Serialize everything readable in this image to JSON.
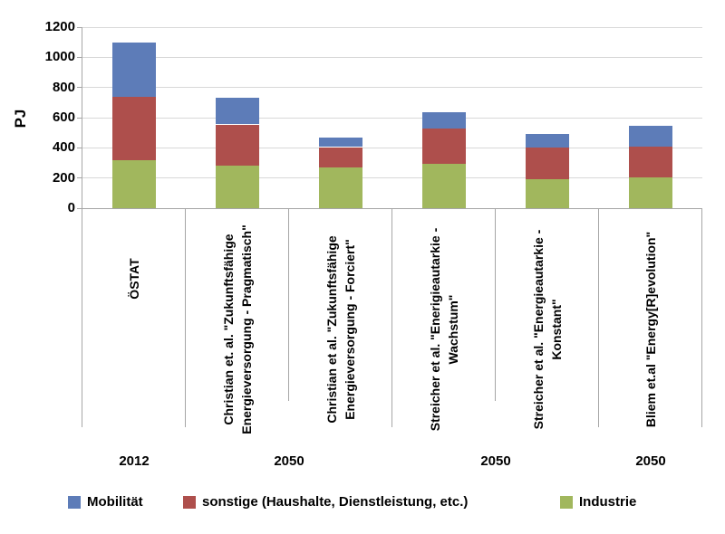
{
  "chart_data": {
    "type": "bar",
    "stacked": true,
    "title": "",
    "ylabel": "PJ",
    "ylim": [
      0,
      1200
    ],
    "ytick_step": 200,
    "yticks": [
      "1200",
      "1000",
      "800",
      "600",
      "400",
      "200",
      "0"
    ],
    "grid": true,
    "legend_position": "bottom",
    "categories": [
      "ÖSTAT",
      "Christian et. al. \"Zukunftsfähige\nEnergieversorgung - Pragmatisch\"",
      "Christian et al. \"Zukunftsfähige\nEnergieversorgung - Forciert\"",
      "Streicher et al. \"Enerigieautarkie -\nWachstum\"",
      "Streicher et al. \"Energieautarkie -\nKonstant\"",
      "Bliem et.al \"Energy[R]evolution\""
    ],
    "groups": [
      {
        "label": "2012",
        "span": 1
      },
      {
        "label": "2050",
        "span": 2
      },
      {
        "label": "2050",
        "span": 2
      },
      {
        "label": "2050",
        "span": 1
      }
    ],
    "series": [
      {
        "name": "Industrie",
        "color": "#a1b75d",
        "values": [
          320,
          280,
          270,
          295,
          195,
          205
        ]
      },
      {
        "name": "sonstige (Haushalte, Dienstleistung, etc.)",
        "color": "#ae4f4c",
        "values": [
          420,
          275,
          135,
          235,
          210,
          205
        ]
      },
      {
        "name": "Mobilität",
        "color": "#5d7cb8",
        "values": [
          360,
          175,
          65,
          105,
          90,
          135
        ]
      }
    ],
    "legend_items": [
      {
        "name": "mobilitaet",
        "label": "Mobilität",
        "color": "#5d7cb8"
      },
      {
        "name": "sonstige",
        "label": "sonstige (Haushalte, Dienstleistung, etc.)",
        "color": "#ae4f4c"
      },
      {
        "name": "industrie",
        "label": "Industrie",
        "color": "#a1b75d"
      }
    ],
    "colors": {
      "gridline": "#d8d8d8",
      "axis": "#a6a6a6",
      "text": "#000000"
    }
  }
}
